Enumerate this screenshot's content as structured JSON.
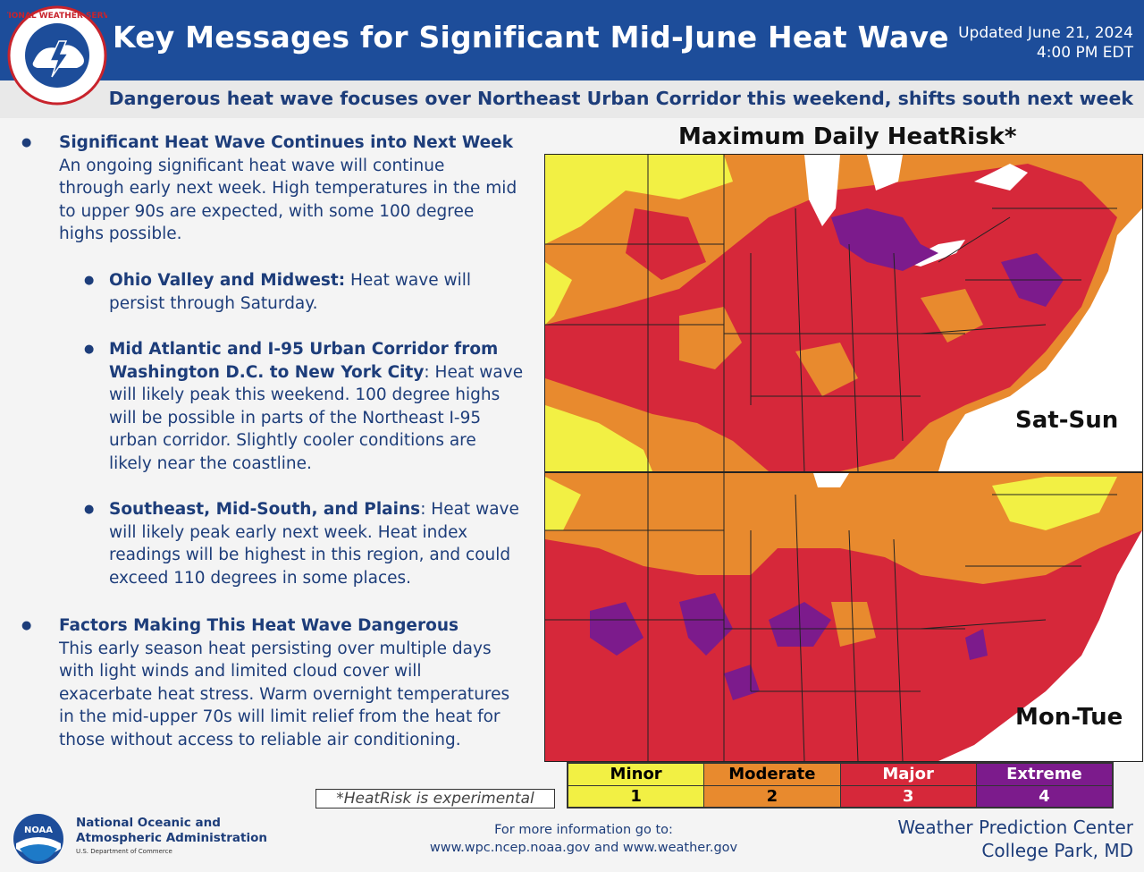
{
  "header": {
    "title": "Key Messages for Significant Mid-June Heat Wave",
    "updated_line1": "Updated June 21, 2024",
    "updated_line2": "4:00 PM EDT",
    "subtitle": "Dangerous heat wave focuses over Northeast Urban Corridor this weekend, shifts south next week",
    "logo_text": "NATIONAL WEATHER SERVICE"
  },
  "messages": {
    "m1": {
      "heading": "Significant Heat Wave Continues into Next Week",
      "lines": [
        "An ongoing significant heat wave will continue",
        "through early next week. High temperatures in the mid",
        "to upper 90s are expected, with some 100 degree",
        "highs possible."
      ]
    },
    "m1a": {
      "heading": "Ohio Valley and Midwest:",
      "rest": " Heat wave will",
      "lines": [
        "persist through Saturday."
      ]
    },
    "m1b": {
      "heading1": "Mid Atlantic and I-95 Urban Corridor from",
      "heading2": "Washington D.C. to New York City",
      "rest": ": Heat wave",
      "lines": [
        "will likely peak this weekend. 100 degree highs",
        "will be possible in parts of the Northeast I-95",
        "urban corridor. Slightly cooler conditions are",
        "likely near the coastline."
      ]
    },
    "m1c": {
      "heading": "Southeast, Mid-South, and Plains",
      "rest": ": Heat wave",
      "lines": [
        "will likely peak early next week. Heat index",
        "readings will be highest in this region, and could",
        "exceed 110 degrees in some places."
      ]
    },
    "m2": {
      "heading": "Factors Making This Heat Wave Dangerous",
      "lines": [
        "This early season heat persisting over multiple days",
        "with light winds and limited cloud cover will",
        "exacerbate heat stress. Warm overnight temperatures",
        "in the mid-upper 70s will limit relief from the heat for",
        "those without access to reliable air conditioning."
      ]
    }
  },
  "map": {
    "title": "Maximum Daily HeatRisk*",
    "panel1": "Sat-Sun",
    "panel2": "Mon-Tue"
  },
  "legend": {
    "items": [
      {
        "name": "Minor",
        "level": "1",
        "color": "#f2f044"
      },
      {
        "name": "Moderate",
        "level": "2",
        "color": "#e88a2e"
      },
      {
        "name": "Major",
        "level": "3",
        "color": "#d6283a"
      },
      {
        "name": "Extreme",
        "level": "4",
        "color": "#7c1b8c"
      }
    ],
    "note": "*HeatRisk is experimental"
  },
  "footer": {
    "noaa_line1": "National Oceanic and",
    "noaa_line2": "Atmospheric Administration",
    "noaa_dept": "U.S. Department of Commerce",
    "noaa_badge": "NOAA",
    "info_line1": "For more information go to:",
    "info_line2": "www.wpc.ncep.noaa.gov and www.weather.gov",
    "wpc_line1": "Weather Prediction Center",
    "wpc_line2": "College Park, MD"
  },
  "colors": {
    "brand_blue": "#1d4d9a",
    "text_blue": "#1d3d7a",
    "minor": "#f2f044",
    "moderate": "#e88a2e",
    "major": "#d6283a",
    "extreme": "#7c1b8c"
  }
}
